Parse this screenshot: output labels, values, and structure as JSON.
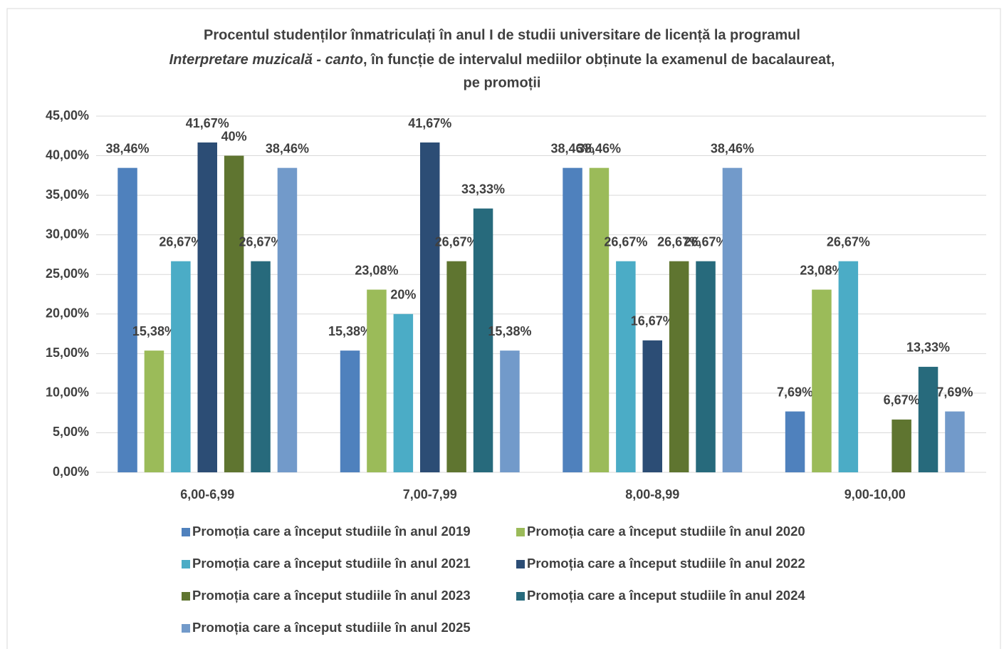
{
  "chart_data": {
    "type": "bar",
    "title_parts": [
      "Procentul studenților înmatriculați în anul I de studii universitare de licență la programul",
      "Interpretare muzicală - canto",
      ", în funcție de intervalul mediilor obținute la examenul de bacalaureat,",
      "pe promoții"
    ],
    "categories": [
      "6,00-6,99",
      "7,00-7,99",
      "8,00-8,99",
      "9,00-10,00"
    ],
    "series": [
      {
        "name": "Promoția care a început studiile în anul 2019",
        "color": "#4f81bd",
        "values": [
          38.46,
          15.38,
          38.46,
          7.69
        ],
        "value_labels": [
          "38,46%",
          "15,38%",
          "38,46%",
          "7,69%"
        ]
      },
      {
        "name": "Promoția care a început studiile în anul 2020",
        "color": "#9bbb59",
        "values": [
          15.38,
          23.08,
          38.46,
          23.08
        ],
        "value_labels": [
          "15,38%",
          "23,08%",
          "38,46%",
          "23,08%"
        ]
      },
      {
        "name": "Promoția care a început studiile în anul 2021",
        "color": "#4bacc6",
        "values": [
          26.67,
          20,
          26.67,
          26.67
        ],
        "value_labels": [
          "26,67%",
          "20%",
          "26,67%",
          "26,67%"
        ]
      },
      {
        "name": "Promoția care a început studiile în anul 2022",
        "color": "#2c4d75",
        "values": [
          41.67,
          41.67,
          16.67,
          null
        ],
        "value_labels": [
          "41,67%",
          "41,67%",
          "16,67%",
          null
        ]
      },
      {
        "name": "Promoția care a început studiile în anul 2023",
        "color": "#5f7530",
        "values": [
          40,
          26.67,
          26.67,
          6.67
        ],
        "value_labels": [
          "40%",
          "26,67%",
          "26,67%",
          "6,67%"
        ]
      },
      {
        "name": "Promoția care a început studiile în anul 2024",
        "color": "#276a7c",
        "values": [
          26.67,
          33.33,
          26.67,
          13.33
        ],
        "value_labels": [
          "26,67%",
          "33,33%",
          "26,67%",
          "13,33%"
        ]
      },
      {
        "name": "Promoția care a început studiile în anul 2025",
        "color": "#729aca",
        "values": [
          38.46,
          15.38,
          38.46,
          7.69
        ],
        "value_labels": [
          "38,46%",
          "15,38%",
          "38,46%",
          "7,69%"
        ]
      }
    ],
    "ylim": [
      0,
      45
    ],
    "yticks": [
      {
        "value": 0,
        "label": "0,00%"
      },
      {
        "value": 5,
        "label": "5,00%"
      },
      {
        "value": 10,
        "label": "10,00%"
      },
      {
        "value": 15,
        "label": "15,00%"
      },
      {
        "value": 20,
        "label": "20,00%"
      },
      {
        "value": 25,
        "label": "25,00%"
      },
      {
        "value": 30,
        "label": "30,00%"
      },
      {
        "value": 35,
        "label": "35,00%"
      },
      {
        "value": 40,
        "label": "40,00%"
      },
      {
        "value": 45,
        "label": "45,00%"
      }
    ],
    "grid": true
  }
}
